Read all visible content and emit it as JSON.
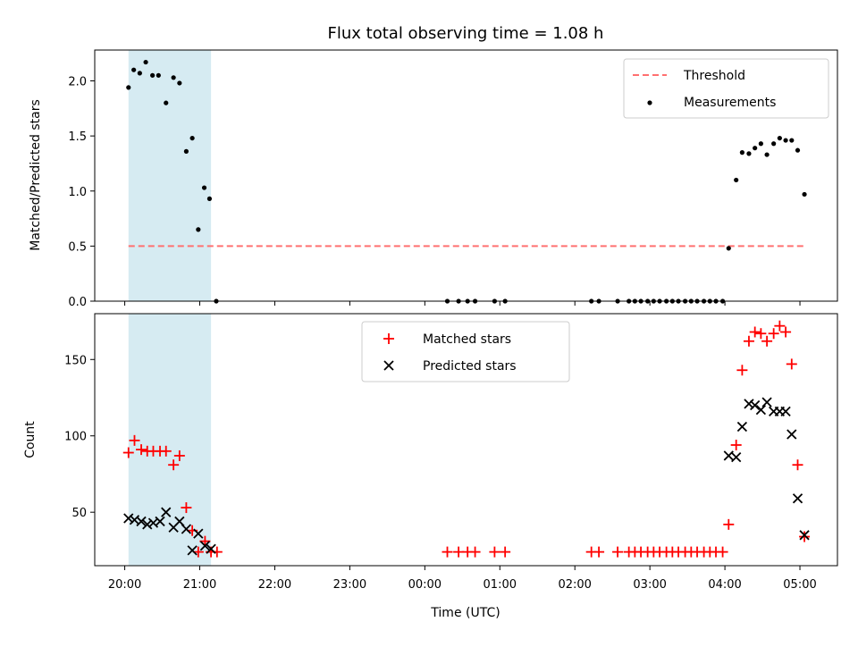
{
  "chart_data": {
    "type": "scatter",
    "title": "Flux total observing time = 1.08 h",
    "xlabel": "Time (UTC)",
    "x_unit": "hours after 20:00 UTC",
    "x_ticks": [
      {
        "value": 0,
        "label": "20:00"
      },
      {
        "value": 1,
        "label": "21:00"
      },
      {
        "value": 2,
        "label": "22:00"
      },
      {
        "value": 3,
        "label": "23:00"
      },
      {
        "value": 4,
        "label": "00:00"
      },
      {
        "value": 5,
        "label": "01:00"
      },
      {
        "value": 6,
        "label": "02:00"
      },
      {
        "value": 7,
        "label": "03:00"
      },
      {
        "value": 8,
        "label": "04:00"
      },
      {
        "value": 9,
        "label": "05:00"
      }
    ],
    "xlim": [
      -0.4,
      9.5
    ],
    "highlight_span": {
      "x_start": 0.05,
      "x_end": 1.15,
      "color": "#add8e6"
    },
    "top": {
      "ylabel": "Matched/Predicted stars",
      "ylim": [
        0,
        2.28
      ],
      "y_ticks": [
        {
          "value": 0,
          "label": "0.0"
        },
        {
          "value": 0.5,
          "label": "0.5"
        },
        {
          "value": 1.0,
          "label": "1.0"
        },
        {
          "value": 1.5,
          "label": "1.5"
        },
        {
          "value": 2.0,
          "label": "2.0"
        }
      ],
      "threshold": {
        "name": "Threshold",
        "y": 0.5,
        "x_start": 0.05,
        "x_end": 9.08,
        "color": "#ff7070"
      },
      "measurements": {
        "name": "Measurements",
        "color": "#000000",
        "points": [
          [
            0.05,
            1.94
          ],
          [
            0.12,
            2.1
          ],
          [
            0.2,
            2.07
          ],
          [
            0.28,
            2.17
          ],
          [
            0.37,
            2.05
          ],
          [
            0.45,
            2.05
          ],
          [
            0.55,
            1.8
          ],
          [
            0.65,
            2.03
          ],
          [
            0.73,
            1.98
          ],
          [
            0.82,
            1.36
          ],
          [
            0.9,
            1.48
          ],
          [
            0.98,
            0.65
          ],
          [
            1.06,
            1.03
          ],
          [
            1.13,
            0.93
          ],
          [
            1.22,
            0.0
          ],
          [
            4.3,
            0.0
          ],
          [
            4.45,
            0.0
          ],
          [
            4.57,
            0.0
          ],
          [
            4.67,
            0.0
          ],
          [
            4.93,
            0.0
          ],
          [
            5.07,
            0.0
          ],
          [
            6.22,
            0.0
          ],
          [
            6.32,
            0.0
          ],
          [
            6.57,
            0.0
          ],
          [
            6.72,
            0.0
          ],
          [
            6.8,
            0.0
          ],
          [
            6.88,
            0.0
          ],
          [
            6.97,
            0.0
          ],
          [
            7.05,
            0.0
          ],
          [
            7.13,
            0.0
          ],
          [
            7.22,
            0.0
          ],
          [
            7.3,
            0.0
          ],
          [
            7.38,
            0.0
          ],
          [
            7.47,
            0.0
          ],
          [
            7.55,
            0.0
          ],
          [
            7.63,
            0.0
          ],
          [
            7.72,
            0.0
          ],
          [
            7.8,
            0.0
          ],
          [
            7.88,
            0.0
          ],
          [
            7.97,
            0.0
          ],
          [
            8.05,
            0.48
          ],
          [
            8.15,
            1.1
          ],
          [
            8.23,
            1.35
          ],
          [
            8.32,
            1.34
          ],
          [
            8.4,
            1.39
          ],
          [
            8.48,
            1.43
          ],
          [
            8.56,
            1.33
          ],
          [
            8.65,
            1.43
          ],
          [
            8.73,
            1.48
          ],
          [
            8.81,
            1.46
          ],
          [
            8.89,
            1.46
          ],
          [
            8.97,
            1.37
          ],
          [
            9.06,
            0.97
          ]
        ]
      }
    },
    "bottom": {
      "ylabel": "Count",
      "ylim": [
        15,
        180
      ],
      "y_ticks": [
        {
          "value": 50,
          "label": "50"
        },
        {
          "value": 100,
          "label": "100"
        },
        {
          "value": 150,
          "label": "150"
        }
      ],
      "series": [
        {
          "name": "Matched stars",
          "marker": "plus",
          "color": "#ff0000",
          "points": [
            [
              0.05,
              89
            ],
            [
              0.13,
              97
            ],
            [
              0.22,
              91
            ],
            [
              0.3,
              90
            ],
            [
              0.38,
              90
            ],
            [
              0.47,
              90
            ],
            [
              0.55,
              90
            ],
            [
              0.65,
              81
            ],
            [
              0.73,
              87
            ],
            [
              0.82,
              53
            ],
            [
              0.9,
              38
            ],
            [
              0.98,
              24
            ],
            [
              1.07,
              31
            ],
            [
              1.15,
              24
            ],
            [
              1.23,
              24
            ],
            [
              4.3,
              24
            ],
            [
              4.45,
              24
            ],
            [
              4.57,
              24
            ],
            [
              4.67,
              24
            ],
            [
              4.93,
              24
            ],
            [
              5.07,
              24
            ],
            [
              6.22,
              24
            ],
            [
              6.32,
              24
            ],
            [
              6.57,
              24
            ],
            [
              6.72,
              24
            ],
            [
              6.8,
              24
            ],
            [
              6.88,
              24
            ],
            [
              6.97,
              24
            ],
            [
              7.05,
              24
            ],
            [
              7.13,
              24
            ],
            [
              7.22,
              24
            ],
            [
              7.3,
              24
            ],
            [
              7.38,
              24
            ],
            [
              7.47,
              24
            ],
            [
              7.55,
              24
            ],
            [
              7.63,
              24
            ],
            [
              7.72,
              24
            ],
            [
              7.8,
              24
            ],
            [
              7.88,
              24
            ],
            [
              7.97,
              24
            ],
            [
              8.05,
              42
            ],
            [
              8.15,
              94
            ],
            [
              8.23,
              143
            ],
            [
              8.32,
              162
            ],
            [
              8.4,
              168
            ],
            [
              8.48,
              167
            ],
            [
              8.56,
              162
            ],
            [
              8.65,
              167
            ],
            [
              8.73,
              172
            ],
            [
              8.81,
              168
            ],
            [
              8.89,
              147
            ],
            [
              8.97,
              81
            ],
            [
              9.06,
              34
            ]
          ]
        },
        {
          "name": "Predicted stars",
          "marker": "x",
          "color": "#000000",
          "points": [
            [
              0.05,
              46
            ],
            [
              0.13,
              45
            ],
            [
              0.22,
              44
            ],
            [
              0.3,
              42
            ],
            [
              0.38,
              43
            ],
            [
              0.47,
              44
            ],
            [
              0.55,
              50
            ],
            [
              0.65,
              40
            ],
            [
              0.73,
              44
            ],
            [
              0.82,
              39
            ],
            [
              0.9,
              25
            ],
            [
              0.98,
              36
            ],
            [
              1.07,
              28
            ],
            [
              1.15,
              26
            ],
            [
              8.05,
              87
            ],
            [
              8.15,
              86
            ],
            [
              8.23,
              106
            ],
            [
              8.32,
              121
            ],
            [
              8.4,
              120
            ],
            [
              8.48,
              117
            ],
            [
              8.56,
              122
            ],
            [
              8.65,
              116
            ],
            [
              8.73,
              116
            ],
            [
              8.81,
              116
            ],
            [
              8.89,
              101
            ],
            [
              8.97,
              59
            ],
            [
              9.06,
              35
            ]
          ]
        }
      ]
    }
  }
}
